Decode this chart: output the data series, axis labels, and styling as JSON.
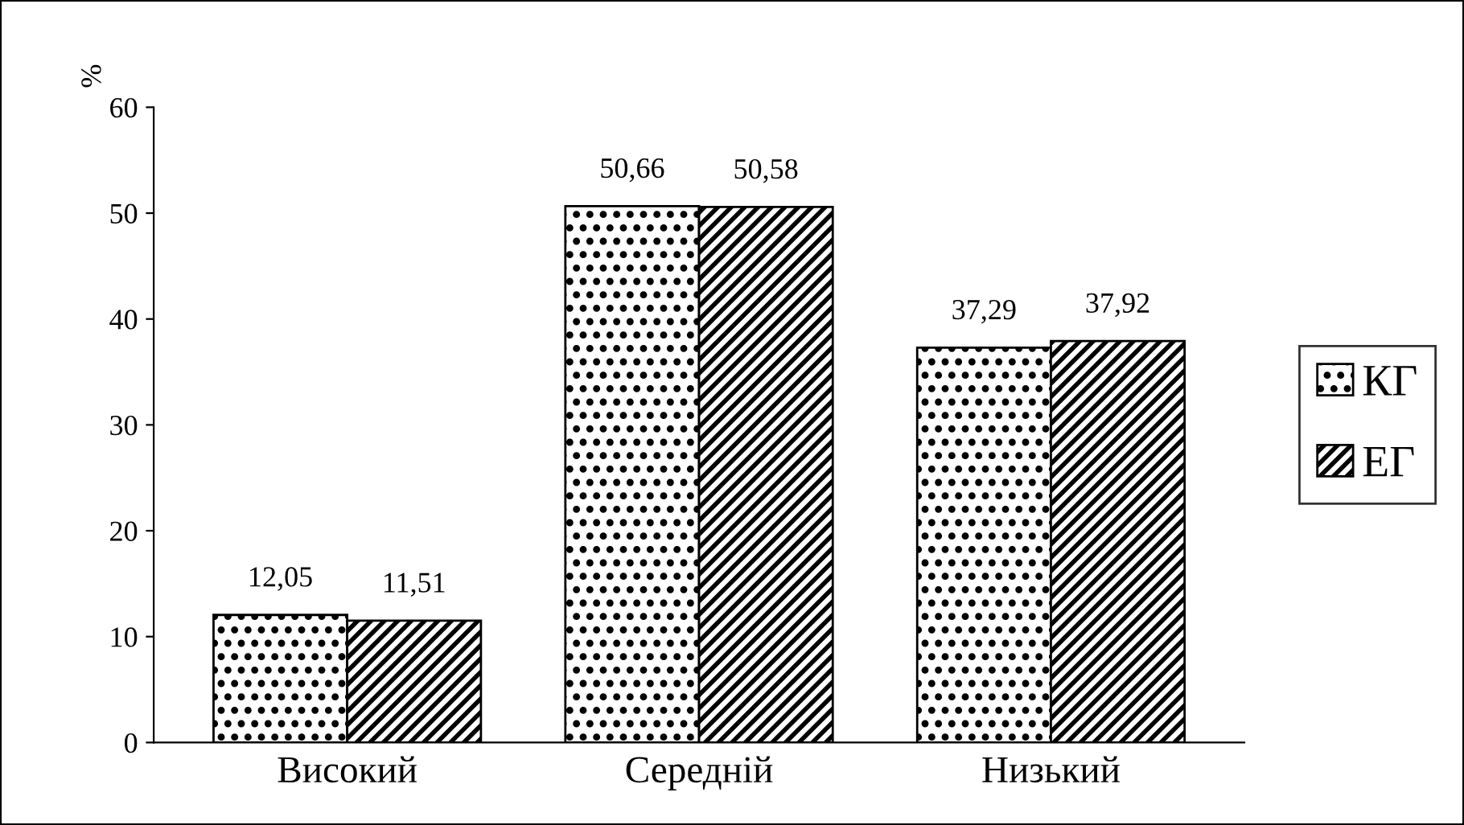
{
  "chart_data": {
    "type": "bar",
    "ylabel": "%",
    "categories": [
      "Високий",
      "Середній",
      "Низький"
    ],
    "series": [
      {
        "name": "КГ",
        "color": "#000000",
        "values": [
          12.05,
          50.66,
          37.29
        ],
        "value_labels": [
          "12,05",
          "50,66",
          "37,29"
        ]
      },
      {
        "name": "ЕГ",
        "color": "#000000",
        "values": [
          11.51,
          50.58,
          37.92
        ],
        "value_labels": [
          "11,51",
          "50,58",
          "37,92"
        ]
      }
    ],
    "ylim": [
      0,
      60
    ],
    "yticks": [
      0,
      10,
      20,
      30,
      40,
      50,
      60
    ],
    "grid": false,
    "legend": "right"
  }
}
